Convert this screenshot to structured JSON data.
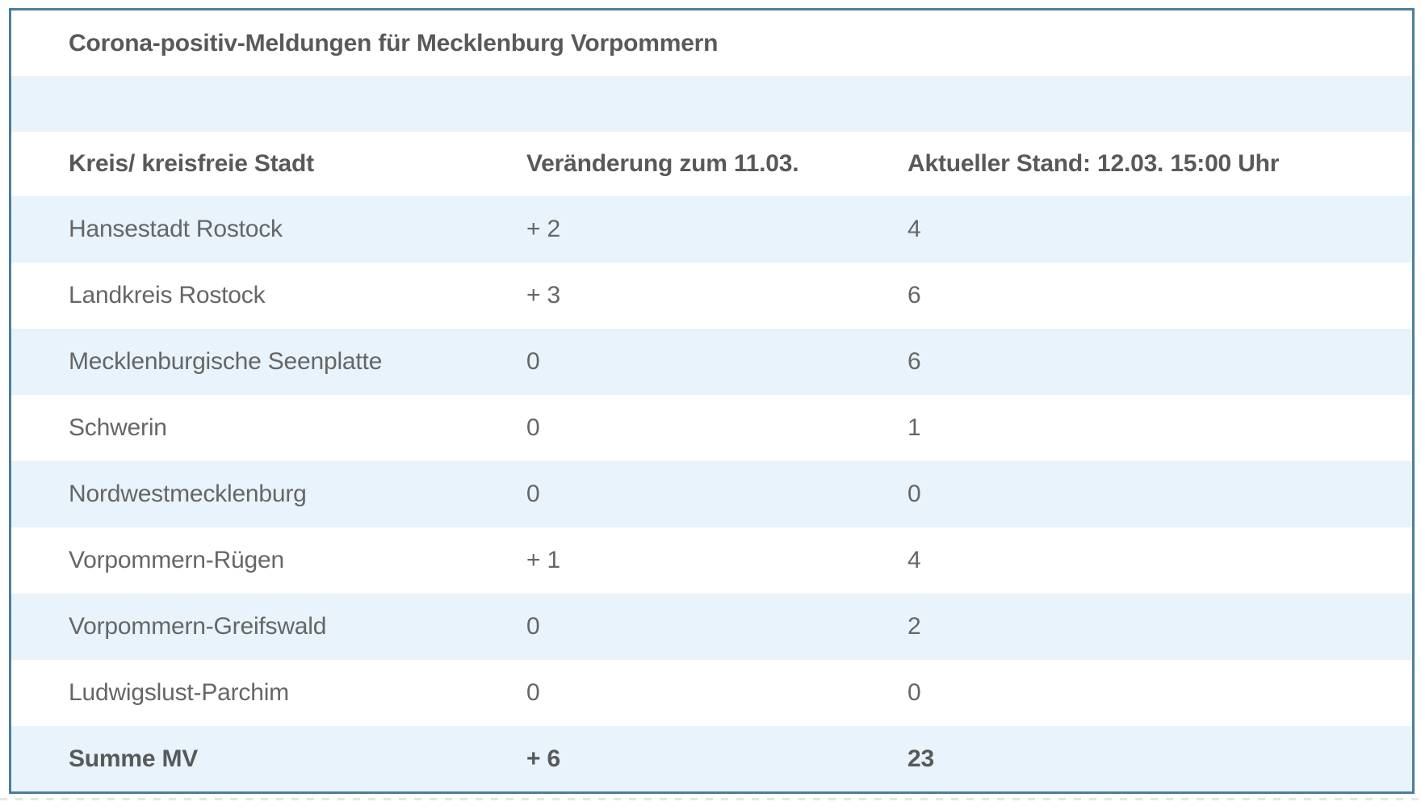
{
  "panel": {
    "title": "Corona-positiv-Meldungen für Mecklenburg Vorpommern"
  },
  "table": {
    "columns": {
      "kreis": "Kreis/ kreisfreie Stadt",
      "veraenderung": "Veränderung zum 11.03.",
      "stand": "Aktueller Stand: 12.03. 15:00 Uhr"
    },
    "rows": [
      {
        "kreis": "Hansestadt Rostock",
        "veraenderung": "+ 2",
        "stand": "4"
      },
      {
        "kreis": "Landkreis Rostock",
        "veraenderung": "+ 3",
        "stand": "6"
      },
      {
        "kreis": "Mecklenburgische Seenplatte",
        "veraenderung": "0",
        "stand": "6"
      },
      {
        "kreis": "Schwerin",
        "veraenderung": "0",
        "stand": "1"
      },
      {
        "kreis": "Nordwestmecklenburg",
        "veraenderung": "0",
        "stand": "0"
      },
      {
        "kreis": "Vorpommern-Rügen",
        "veraenderung": "+ 1",
        "stand": "4"
      },
      {
        "kreis": "Vorpommern-Greifswald",
        "veraenderung": "0",
        "stand": "2"
      },
      {
        "kreis": "Ludwigslust-Parchim",
        "veraenderung": "0",
        "stand": "0"
      }
    ],
    "total": {
      "kreis": "Summe MV",
      "veraenderung": "+ 6",
      "stand": "23"
    }
  },
  "colors": {
    "border_blue": "#4d7d9c",
    "row_blue": "#e8f3fb",
    "row_white": "#ffffff",
    "text_gray": "#666666",
    "heading_gray": "#595959"
  }
}
